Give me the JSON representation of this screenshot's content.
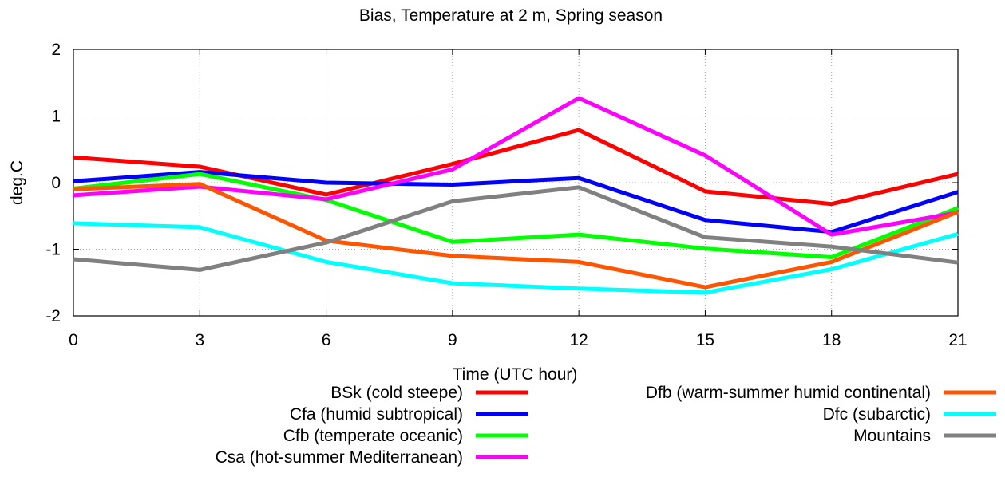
{
  "chart_data": {
    "type": "line",
    "title": "Bias, Temperature at 2 m, Spring season",
    "xlabel": "Time (UTC hour)",
    "ylabel": "deg.C",
    "x": [
      0,
      3,
      6,
      9,
      12,
      15,
      18,
      21
    ],
    "xlim": [
      0,
      21
    ],
    "ylim": [
      -2,
      2
    ],
    "xticks": [
      "0",
      "3",
      "6",
      "9",
      "12",
      "15",
      "18",
      "21"
    ],
    "yticks": [
      "-2",
      "-1",
      "0",
      "1",
      "2"
    ],
    "grid": true,
    "legend_position": "bottom",
    "series": [
      {
        "name": "BSk (cold steepe)",
        "color": "#ff0000",
        "values": [
          0.38,
          0.24,
          -0.18,
          0.28,
          0.79,
          -0.13,
          -0.32,
          0.13
        ]
      },
      {
        "name": "Cfa (humid subtropical)",
        "color": "#0000ff",
        "values": [
          0.02,
          0.16,
          0.0,
          -0.03,
          0.07,
          -0.56,
          -0.74,
          -0.14
        ]
      },
      {
        "name": "Cfb (temperate oceanic)",
        "color": "#00ff00",
        "values": [
          -0.09,
          0.13,
          -0.26,
          -0.89,
          -0.78,
          -0.99,
          -1.12,
          -0.38
        ]
      },
      {
        "name": "Csa (hot-summer Mediterranean)",
        "color": "#ff00ff",
        "values": [
          -0.19,
          -0.06,
          -0.25,
          0.2,
          1.27,
          0.41,
          -0.78,
          -0.45
        ]
      },
      {
        "name": "Dfb (warm-summer humid continental)",
        "color": "#ff5500",
        "values": [
          -0.1,
          -0.02,
          -0.87,
          -1.1,
          -1.19,
          -1.57,
          -1.19,
          -0.44
        ]
      },
      {
        "name": "Dfc (subarctic)",
        "color": "#00ffff",
        "values": [
          -0.61,
          -0.67,
          -1.19,
          -1.51,
          -1.59,
          -1.65,
          -1.3,
          -0.77
        ]
      },
      {
        "name": "Mountains",
        "color": "#808080",
        "values": [
          -1.15,
          -1.31,
          -0.9,
          -0.28,
          -0.07,
          -0.82,
          -0.96,
          -1.2
        ]
      }
    ]
  }
}
